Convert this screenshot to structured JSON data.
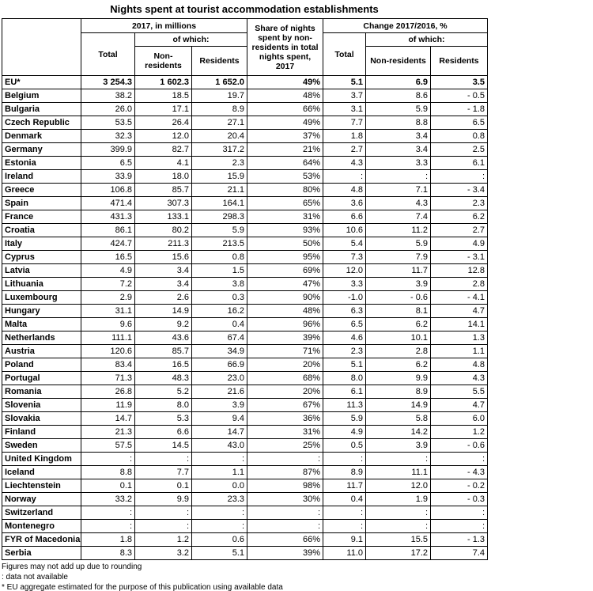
{
  "chart_data": {
    "type": "table",
    "title": "Nights spent at tourist accommodation establishments",
    "header": {
      "col_group_2017": "2017, in millions",
      "of_which": "of which:",
      "total": "Total",
      "non_residents": "Non-residents",
      "residents": "Residents",
      "share_col": "Share of nights spent by non-residents in total nights spent, 2017",
      "col_group_change": "Change 2017/2016, %"
    },
    "rows": [
      {
        "country": "EU*",
        "emphasis": true,
        "cells": [
          "3 254.3",
          "1 602.3",
          "1 652.0",
          "49%",
          "5.1",
          "6.9",
          "3.5"
        ]
      },
      {
        "country": "Belgium",
        "emphasis": false,
        "cells": [
          "38.2",
          "18.5",
          "19.7",
          "48%",
          "3.7",
          "8.6",
          "- 0.5"
        ]
      },
      {
        "country": "Bulgaria",
        "emphasis": false,
        "cells": [
          "26.0",
          "17.1",
          "8.9",
          "66%",
          "3.1",
          "5.9",
          "- 1.8"
        ]
      },
      {
        "country": "Czech Republic",
        "emphasis": false,
        "cells": [
          "53.5",
          "26.4",
          "27.1",
          "49%",
          "7.7",
          "8.8",
          "6.5"
        ]
      },
      {
        "country": "Denmark",
        "emphasis": false,
        "cells": [
          "32.3",
          "12.0",
          "20.4",
          "37%",
          "1.8",
          "3.4",
          "0.8"
        ]
      },
      {
        "country": "Germany",
        "emphasis": false,
        "cells": [
          "399.9",
          "82.7",
          "317.2",
          "21%",
          "2.7",
          "3.4",
          "2.5"
        ]
      },
      {
        "country": "Estonia",
        "emphasis": false,
        "cells": [
          "6.5",
          "4.1",
          "2.3",
          "64%",
          "4.3",
          "3.3",
          "6.1"
        ]
      },
      {
        "country": "Ireland",
        "emphasis": false,
        "cells": [
          "33.9",
          "18.0",
          "15.9",
          "53%",
          ":",
          ":",
          ":"
        ]
      },
      {
        "country": "Greece",
        "emphasis": false,
        "cells": [
          "106.8",
          "85.7",
          "21.1",
          "80%",
          "4.8",
          "7.1",
          "- 3.4"
        ]
      },
      {
        "country": "Spain",
        "emphasis": false,
        "cells": [
          "471.4",
          "307.3",
          "164.1",
          "65%",
          "3.6",
          "4.3",
          "2.3"
        ]
      },
      {
        "country": "France",
        "emphasis": false,
        "cells": [
          "431.3",
          "133.1",
          "298.3",
          "31%",
          "6.6",
          "7.4",
          "6.2"
        ]
      },
      {
        "country": "Croatia",
        "emphasis": false,
        "cells": [
          "86.1",
          "80.2",
          "5.9",
          "93%",
          "10.6",
          "11.2",
          "2.7"
        ]
      },
      {
        "country": "Italy",
        "emphasis": false,
        "cells": [
          "424.7",
          "211.3",
          "213.5",
          "50%",
          "5.4",
          "5.9",
          "4.9"
        ]
      },
      {
        "country": "Cyprus",
        "emphasis": false,
        "cells": [
          "16.5",
          "15.6",
          "0.8",
          "95%",
          "7.3",
          "7.9",
          "- 3.1"
        ]
      },
      {
        "country": "Latvia",
        "emphasis": false,
        "cells": [
          "4.9",
          "3.4",
          "1.5",
          "69%",
          "12.0",
          "11.7",
          "12.8"
        ]
      },
      {
        "country": "Lithuania",
        "emphasis": false,
        "cells": [
          "7.2",
          "3.4",
          "3.8",
          "47%",
          "3.3",
          "3.9",
          "2.8"
        ]
      },
      {
        "country": "Luxembourg",
        "emphasis": false,
        "cells": [
          "2.9",
          "2.6",
          "0.3",
          "90%",
          "-1.0",
          "- 0.6",
          "- 4.1"
        ]
      },
      {
        "country": "Hungary",
        "emphasis": false,
        "cells": [
          "31.1",
          "14.9",
          "16.2",
          "48%",
          "6.3",
          "8.1",
          "4.7"
        ]
      },
      {
        "country": "Malta",
        "emphasis": false,
        "cells": [
          "9.6",
          "9.2",
          "0.4",
          "96%",
          "6.5",
          "6.2",
          "14.1"
        ]
      },
      {
        "country": "Netherlands",
        "emphasis": false,
        "cells": [
          "111.1",
          "43.6",
          "67.4",
          "39%",
          "4.6",
          "10.1",
          "1.3"
        ]
      },
      {
        "country": "Austria",
        "emphasis": false,
        "cells": [
          "120.6",
          "85.7",
          "34.9",
          "71%",
          "2.3",
          "2.8",
          "1.1"
        ]
      },
      {
        "country": "Poland",
        "emphasis": false,
        "cells": [
          "83.4",
          "16.5",
          "66.9",
          "20%",
          "5.1",
          "6.2",
          "4.8"
        ]
      },
      {
        "country": "Portugal",
        "emphasis": false,
        "cells": [
          "71.3",
          "48.3",
          "23.0",
          "68%",
          "8.0",
          "9.9",
          "4.3"
        ]
      },
      {
        "country": "Romania",
        "emphasis": false,
        "cells": [
          "26.8",
          "5.2",
          "21.6",
          "20%",
          "6.1",
          "8.9",
          "5.5"
        ]
      },
      {
        "country": "Slovenia",
        "emphasis": false,
        "cells": [
          "11.9",
          "8.0",
          "3.9",
          "67%",
          "11.3",
          "14.9",
          "4.7"
        ]
      },
      {
        "country": "Slovakia",
        "emphasis": false,
        "cells": [
          "14.7",
          "5.3",
          "9.4",
          "36%",
          "5.9",
          "5.8",
          "6.0"
        ]
      },
      {
        "country": "Finland",
        "emphasis": false,
        "cells": [
          "21.3",
          "6.6",
          "14.7",
          "31%",
          "4.9",
          "14.2",
          "1.2"
        ]
      },
      {
        "country": "Sweden",
        "emphasis": false,
        "cells": [
          "57.5",
          "14.5",
          "43.0",
          "25%",
          "0.5",
          "3.9",
          "- 0.6"
        ]
      },
      {
        "country": "United Kingdom",
        "emphasis": false,
        "cells": [
          ":",
          ":",
          ":",
          ":",
          ":",
          ":",
          ":"
        ]
      },
      {
        "country": "Iceland",
        "emphasis": false,
        "cells": [
          "8.8",
          "7.7",
          "1.1",
          "87%",
          "8.9",
          "11.1",
          "- 4.3"
        ]
      },
      {
        "country": "Liechtenstein",
        "emphasis": false,
        "cells": [
          "0.1",
          "0.1",
          "0.0",
          "98%",
          "11.7",
          "12.0",
          "- 0.2"
        ]
      },
      {
        "country": "Norway",
        "emphasis": false,
        "cells": [
          "33.2",
          "9.9",
          "23.3",
          "30%",
          "0.4",
          "1.9",
          "- 0.3"
        ]
      },
      {
        "country": "Switzerland",
        "emphasis": false,
        "cells": [
          ":",
          ":",
          ":",
          ":",
          ":",
          ":",
          ":"
        ]
      },
      {
        "country": "Montenegro",
        "emphasis": false,
        "cells": [
          ":",
          ":",
          ":",
          ":",
          ":",
          ":",
          ":"
        ]
      },
      {
        "country": "FYR of Macedonia",
        "emphasis": false,
        "cells": [
          "1.8",
          "1.2",
          "0.6",
          "66%",
          "9.1",
          "15.5",
          "- 1.3"
        ]
      },
      {
        "country": "Serbia",
        "emphasis": false,
        "cells": [
          "8.3",
          "3.2",
          "5.1",
          "39%",
          "11.0",
          "17.2",
          "7.4"
        ]
      }
    ],
    "footnotes": [
      "Figures may not add up due to rounding",
      ": data not available",
      "* EU aggregate estimated for the purpose of this publication using available data"
    ]
  }
}
